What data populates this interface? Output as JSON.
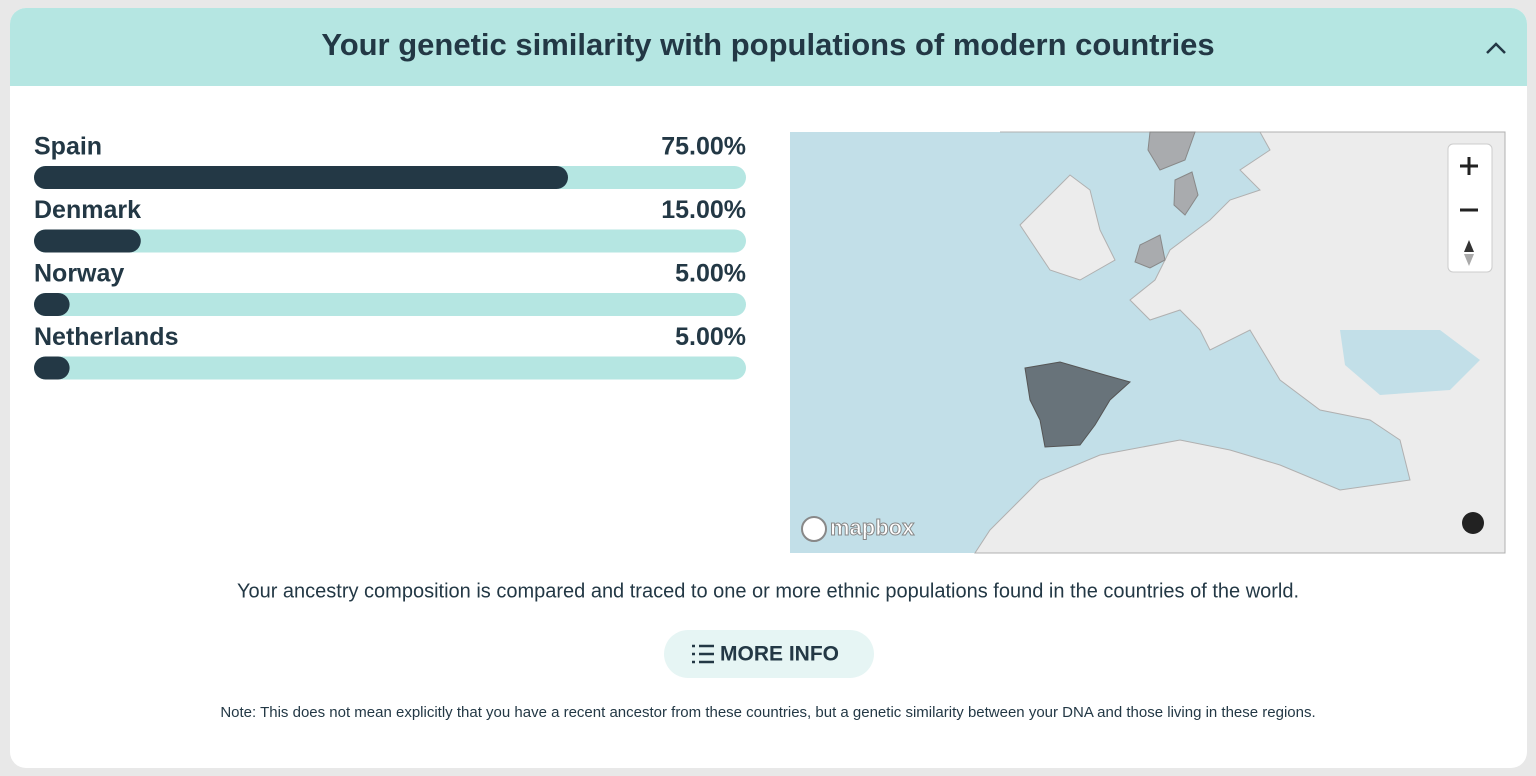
{
  "header": {
    "title": "Your genetic similarity with populations of modern countries"
  },
  "chart_data": {
    "type": "bar",
    "orientation": "horizontal",
    "categories": [
      "Spain",
      "Denmark",
      "Norway",
      "Netherlands"
    ],
    "values": [
      75,
      15,
      5,
      5
    ],
    "value_labels": [
      "75.00%",
      "15.00%",
      "5.00%",
      "5.00%"
    ],
    "xlim": [
      0,
      100
    ],
    "color": "#233845",
    "track_color": "#b5e6e2"
  },
  "map": {
    "attribution": "mapbox"
  },
  "description": "Your ancestry composition is compared and traced to one or more ethnic populations found in the countries of the world.",
  "button": {
    "label": "MORE INFO"
  },
  "note": "Note: This does not mean explicitly that you have a recent ancestor from these countries, but a genetic similarity between your DNA and those living in these regions."
}
